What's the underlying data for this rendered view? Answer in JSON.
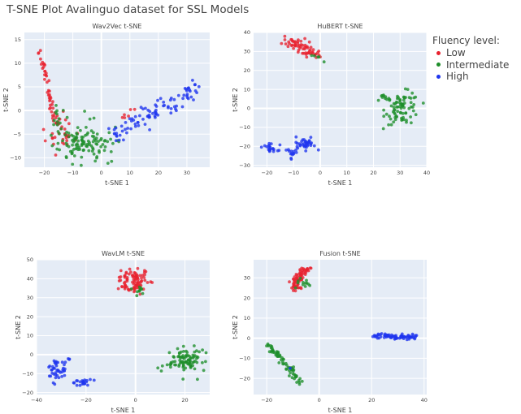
{
  "figure_title": "T-SNE Plot Avalinguo dataset for SSL Models",
  "legend": {
    "title": "Fluency level:",
    "items": [
      {
        "label": "Low",
        "color": "#e8212e"
      },
      {
        "label": "Intermediate",
        "color": "#1e8e2a"
      },
      {
        "label": "High",
        "color": "#1f35ee"
      }
    ]
  },
  "style": {
    "plot_bg": "#e5ecf6",
    "grid": "#ffffff"
  },
  "chart_data": [
    {
      "type": "scatter",
      "title": "Wav2Vec t-SNE",
      "xlabel": "t-SNE 1",
      "ylabel": "t-SNE 2",
      "xlim": [
        -27,
        38
      ],
      "ylim": [
        -12,
        16.5
      ],
      "xticks": [
        -20,
        -10,
        0,
        10,
        20,
        30
      ],
      "yticks": [
        -10,
        -5,
        0,
        5,
        10,
        15
      ],
      "series": [
        {
          "name": "Low",
          "color": "#e8212e",
          "clusters": [
            {
              "path": [
                [
                  -22,
                  15
                ],
                [
                  -22,
                  12
                ],
                [
                  -20,
                  9
                ],
                [
                  -19,
                  6
                ],
                [
                  -18,
                  3
                ],
                [
                  -17,
                  1
                ],
                [
                  -17,
                  -1
                ],
                [
                  -15,
                  -3
                ],
                [
                  -13,
                  -5
                ],
                [
                  -11,
                  -6
                ]
              ],
              "n": 55,
              "spread": 0.45
            },
            {
              "cx": -15,
              "cy": -5,
              "sx": 2.5,
              "sy": 2.5,
              "n": 25
            },
            {
              "path": [
                [
                  7,
                  -2
                ],
                [
                  12,
                  0
                ]
              ],
              "n": 6,
              "spread": 0.4
            }
          ]
        },
        {
          "name": "Intermediate",
          "color": "#1e8e2a",
          "clusters": [
            {
              "cx": -5,
              "cy": -7,
              "sx": 4.2,
              "sy": 1.8,
              "n": 110
            },
            {
              "cx": -15,
              "cy": -3,
              "sx": 1.8,
              "sy": 2.2,
              "n": 20
            }
          ]
        },
        {
          "name": "High",
          "color": "#1f35ee",
          "clusters": [
            {
              "path": [
                [
                  4,
                  -5
                ],
                [
                  13,
                  -2
                ],
                [
                  20,
                  0
                ],
                [
                  27,
                  2
                ],
                [
                  34,
                  5
                ]
              ],
              "n": 90,
              "spread": 1.0
            },
            {
              "cx": 5,
              "cy": -4.8,
              "sx": 0.6,
              "sy": 0.4,
              "n": 3
            }
          ]
        }
      ]
    },
    {
      "type": "scatter",
      "title": "HuBERT t-SNE",
      "xlabel": "t-SNE 1",
      "ylabel": "t-SNE 2",
      "xlim": [
        -25,
        40
      ],
      "ylim": [
        -31,
        40
      ],
      "xticks": [
        -20,
        -10,
        0,
        10,
        20,
        30,
        40
      ],
      "yticks": [
        -30,
        -20,
        -10,
        0,
        10,
        20,
        30,
        40
      ],
      "series": [
        {
          "name": "Low",
          "color": "#e8212e",
          "clusters": [
            {
              "path": [
                [
                  -12,
                  35
                ],
                [
                  -6,
                  31
                ],
                [
                  -1,
                  28
                ]
              ],
              "n": 65,
              "spread": 1.7
            }
          ]
        },
        {
          "name": "Intermediate",
          "color": "#1e8e2a",
          "clusters": [
            {
              "cx": 31,
              "cy": 0,
              "sx": 3.2,
              "sy": 4.2,
              "n": 80
            },
            {
              "path": [
                [
                  21,
                  7
                ],
                [
                  26,
                  4
                ]
              ],
              "n": 10,
              "spread": 0.7
            },
            {
              "path": [
                [
                  -3,
                  28
                ],
                [
                  2,
                  26
                ]
              ],
              "n": 5,
              "spread": 0.4
            }
          ]
        },
        {
          "name": "High",
          "color": "#1f35ee",
          "clusters": [
            {
              "cx": -5.5,
              "cy": -19,
              "sx": 1.8,
              "sy": 2.0,
              "n": 35
            },
            {
              "cx": -11,
              "cy": -23,
              "sx": 1.0,
              "sy": 1.8,
              "n": 15
            },
            {
              "cx": -19,
              "cy": -21,
              "sx": 1.6,
              "sy": 1.2,
              "n": 22
            }
          ]
        }
      ]
    },
    {
      "type": "scatter",
      "title": "WavLM t-SNE",
      "xlabel": "t-SNE 1",
      "ylabel": "t-SNE 2",
      "xlim": [
        -40,
        30
      ],
      "ylim": [
        -21,
        50
      ],
      "xticks": [
        -40,
        -20,
        0,
        20
      ],
      "yticks": [
        -20,
        -10,
        0,
        10,
        20,
        30,
        40,
        50
      ],
      "series": [
        {
          "name": "Low",
          "color": "#e8212e",
          "clusters": [
            {
              "cx": -1,
              "cy": 39,
              "sx": 2.8,
              "sy": 3.4,
              "n": 90
            }
          ]
        },
        {
          "name": "Intermediate",
          "color": "#1e8e2a",
          "clusters": [
            {
              "cx": 20.5,
              "cy": -3,
              "sx": 3.4,
              "sy": 3.6,
              "n": 95
            },
            {
              "cx": 1,
              "cy": 34,
              "sx": 1.4,
              "sy": 2.2,
              "n": 10
            }
          ]
        },
        {
          "name": "High",
          "color": "#1f35ee",
          "clusters": [
            {
              "cx": -32,
              "cy": -7,
              "sx": 2.0,
              "sy": 3.5,
              "n": 42
            },
            {
              "cx": -21,
              "cy": -14.5,
              "sx": 2.0,
              "sy": 1.0,
              "n": 22
            },
            {
              "cx": -27,
              "cy": -3,
              "sx": 0.4,
              "sy": 0.6,
              "n": 3
            }
          ]
        }
      ]
    },
    {
      "type": "scatter",
      "title": "Fusion t-SNE",
      "xlabel": "t-SNE 1",
      "ylabel": "t-SNE 2",
      "xlim": [
        -25,
        41
      ],
      "ylim": [
        -28,
        39
      ],
      "xticks": [
        -20,
        0,
        20,
        40
      ],
      "yticks": [
        -20,
        -10,
        0,
        10,
        20,
        30
      ],
      "series": [
        {
          "name": "Low",
          "color": "#e8212e",
          "clusters": [
            {
              "path": [
                [
                  -4,
                  35
                ],
                [
                  -8,
                  31
                ],
                [
                  -9,
                  27
                ],
                [
                  -9,
                  24
                ]
              ],
              "n": 70,
              "spread": 0.9
            }
          ]
        },
        {
          "name": "Intermediate",
          "color": "#1e8e2a",
          "clusters": [
            {
              "path": [
                [
                  -20,
                  -3
                ],
                [
                  -17,
                  -7
                ],
                [
                  -13,
                  -12
                ],
                [
                  -10,
                  -16
                ],
                [
                  -9,
                  -19
                ],
                [
                  -8,
                  -23
                ]
              ],
              "n": 70,
              "spread": 0.8
            },
            {
              "cx": -6,
              "cy": 27,
              "sx": 1.5,
              "sy": 2.5,
              "n": 12
            }
          ]
        },
        {
          "name": "High",
          "color": "#1f35ee",
          "clusters": [
            {
              "path": [
                [
                  20,
                  1.5
                ],
                [
                  30,
                  0.8
                ],
                [
                  38,
                  0.3
                ]
              ],
              "n": 75,
              "spread": 0.6
            },
            {
              "cx": -11,
              "cy": -15,
              "sx": 0.3,
              "sy": 0.3,
              "n": 1
            }
          ]
        }
      ]
    }
  ]
}
